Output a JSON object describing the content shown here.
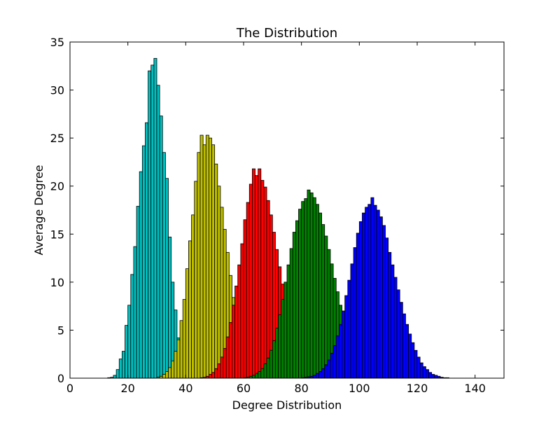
{
  "chart_data": {
    "type": "bar",
    "title": "The Distribution",
    "xlabel": "Degree Distribution",
    "ylabel": "Average Degree",
    "xlim": [
      0,
      150
    ],
    "ylim": [
      0,
      35
    ],
    "xticks": [
      "0",
      "20",
      "40",
      "60",
      "80",
      "100",
      "120",
      "140"
    ],
    "yticks": [
      "0",
      "5",
      "10",
      "15",
      "20",
      "25",
      "30",
      "35"
    ],
    "grid": false,
    "legend": "none",
    "bin_width": 1,
    "series": [
      {
        "color": "#00bfbf",
        "x": [
          10,
          11,
          12,
          13,
          14,
          15,
          16,
          17,
          18,
          19,
          20,
          21,
          22,
          23,
          24,
          25,
          26,
          27,
          28,
          29,
          30,
          31,
          32,
          33,
          34,
          35,
          36,
          37,
          38,
          39,
          40,
          41,
          42,
          43,
          44,
          45,
          46,
          47,
          48,
          49,
          50
        ],
        "values": [
          0,
          0,
          0,
          0.05,
          0.1,
          0.3,
          0.9,
          2.0,
          2.8,
          5.5,
          7.6,
          10.8,
          13.7,
          17.9,
          21.5,
          24.2,
          26.6,
          32.0,
          32.6,
          33.3,
          30.5,
          27.3,
          23.5,
          20.8,
          14.7,
          10.0,
          7.1,
          4.2,
          2.2,
          1.2,
          0.7,
          0.4,
          0.2,
          0.1,
          0.05,
          0,
          0,
          0,
          0,
          0,
          0
        ]
      },
      {
        "color": "#bfbf00",
        "x": [
          30,
          31,
          32,
          33,
          34,
          35,
          36,
          37,
          38,
          39,
          40,
          41,
          42,
          43,
          44,
          45,
          46,
          47,
          48,
          49,
          50,
          51,
          52,
          53,
          54,
          55,
          56,
          57,
          58,
          59,
          60,
          61,
          62,
          63,
          64,
          65,
          66,
          67,
          68,
          69,
          70
        ],
        "values": [
          0.1,
          0.2,
          0.4,
          0.7,
          1.1,
          1.8,
          2.8,
          4.0,
          6.0,
          8.2,
          11.4,
          14.3,
          17.0,
          20.5,
          23.5,
          25.3,
          24.3,
          25.3,
          25.0,
          24.3,
          22.3,
          20.0,
          17.8,
          15.5,
          13.1,
          10.7,
          8.4,
          6.4,
          4.6,
          3.2,
          2.2,
          1.5,
          1.0,
          0.6,
          0.4,
          0.2,
          0.1,
          0.05,
          0,
          0,
          0
        ]
      },
      {
        "color": "#ff0000",
        "x": [
          45,
          46,
          47,
          48,
          49,
          50,
          51,
          52,
          53,
          54,
          55,
          56,
          57,
          58,
          59,
          60,
          61,
          62,
          63,
          64,
          65,
          66,
          67,
          68,
          69,
          70,
          71,
          72,
          73,
          74,
          75,
          76,
          77,
          78,
          79,
          80,
          81,
          82,
          83,
          84,
          85,
          86,
          87,
          88,
          89,
          90
        ],
        "values": [
          0.05,
          0.1,
          0.2,
          0.4,
          0.6,
          1.0,
          1.5,
          2.2,
          3.1,
          4.3,
          5.8,
          7.6,
          9.6,
          11.8,
          14.0,
          16.5,
          18.3,
          20.2,
          21.8,
          21.1,
          21.8,
          20.6,
          19.9,
          18.5,
          17.0,
          15.2,
          13.4,
          11.6,
          9.8,
          8.3,
          6.9,
          5.6,
          4.4,
          3.5,
          2.6,
          1.9,
          1.4,
          1.0,
          0.7,
          0.5,
          0.3,
          0.2,
          0.1,
          0.05,
          0,
          0
        ]
      },
      {
        "color": "#007f00",
        "x": [
          60,
          61,
          62,
          63,
          64,
          65,
          66,
          67,
          68,
          69,
          70,
          71,
          72,
          73,
          74,
          75,
          76,
          77,
          78,
          79,
          80,
          81,
          82,
          83,
          84,
          85,
          86,
          87,
          88,
          89,
          90,
          91,
          92,
          93,
          94,
          95,
          96,
          97,
          98,
          99,
          100,
          101,
          102,
          103,
          104,
          105,
          106,
          107,
          108,
          109,
          110
        ],
        "values": [
          0.05,
          0.1,
          0.2,
          0.3,
          0.5,
          0.7,
          1.0,
          1.5,
          2.1,
          2.9,
          3.9,
          5.2,
          6.6,
          8.2,
          10.0,
          11.8,
          13.5,
          15.2,
          16.4,
          17.6,
          18.4,
          18.7,
          19.6,
          19.3,
          18.8,
          18.1,
          17.2,
          16.0,
          14.8,
          13.4,
          11.9,
          10.4,
          9.0,
          7.6,
          6.3,
          5.1,
          4.1,
          3.2,
          2.5,
          1.9,
          1.4,
          1.0,
          0.7,
          0.5,
          0.3,
          0.2,
          0.1,
          0.05,
          0,
          0,
          0
        ]
      },
      {
        "color": "#0000ff",
        "x": [
          80,
          81,
          82,
          83,
          84,
          85,
          86,
          87,
          88,
          89,
          90,
          91,
          92,
          93,
          94,
          95,
          96,
          97,
          98,
          99,
          100,
          101,
          102,
          103,
          104,
          105,
          106,
          107,
          108,
          109,
          110,
          111,
          112,
          113,
          114,
          115,
          116,
          117,
          118,
          119,
          120,
          121,
          122,
          123,
          124,
          125,
          126,
          127,
          128,
          129,
          130,
          131,
          132,
          133,
          134,
          135,
          136
        ],
        "values": [
          0.05,
          0.1,
          0.15,
          0.2,
          0.3,
          0.5,
          0.7,
          1.0,
          1.4,
          1.9,
          2.6,
          3.4,
          4.4,
          5.6,
          7.0,
          8.6,
          10.2,
          11.9,
          13.6,
          15.1,
          16.3,
          17.2,
          17.8,
          18.1,
          18.8,
          18.0,
          17.5,
          16.8,
          15.9,
          14.6,
          13.1,
          11.8,
          10.5,
          9.2,
          7.9,
          6.7,
          5.6,
          4.6,
          3.7,
          2.9,
          2.2,
          1.6,
          1.2,
          0.9,
          0.6,
          0.4,
          0.3,
          0.2,
          0.1,
          0.05,
          0.05,
          0,
          0,
          0,
          0,
          0,
          0
        ]
      }
    ]
  }
}
